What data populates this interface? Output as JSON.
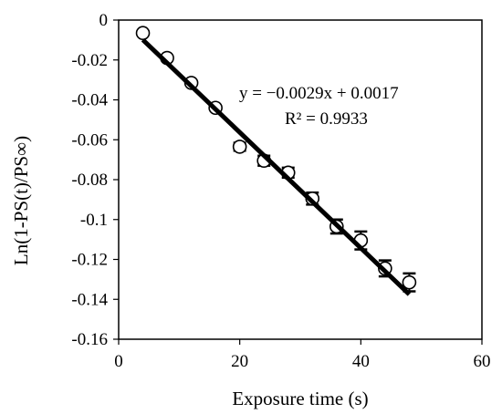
{
  "chart_data": {
    "type": "scatter",
    "xlabel": "Exposure time (s)",
    "ylabel": "Ln(1-PS(t)/PS∞)",
    "xlim": [
      0,
      60
    ],
    "ylim": [
      -0.16,
      0
    ],
    "x_ticks": [
      0,
      20,
      40,
      60
    ],
    "y_ticks": [
      0,
      -0.02,
      -0.04,
      -0.06,
      -0.08,
      -0.1,
      -0.12,
      -0.14,
      -0.16
    ],
    "x_tick_labels": [
      "0",
      "20",
      "40",
      "60"
    ],
    "y_tick_labels": [
      "0",
      "-0.02",
      "-0.04",
      "-0.06",
      "-0.08",
      "-0.1",
      "-0.12",
      "-0.14",
      "-0.16"
    ],
    "grid": false,
    "points": [
      {
        "x": 4,
        "y": -0.0065,
        "err": 0
      },
      {
        "x": 8,
        "y": -0.019,
        "err": 0
      },
      {
        "x": 12,
        "y": -0.0315,
        "err": 0
      },
      {
        "x": 16,
        "y": -0.044,
        "err": 0
      },
      {
        "x": 20,
        "y": -0.0635,
        "err": 0.002
      },
      {
        "x": 24,
        "y": -0.0705,
        "err": 0.0025
      },
      {
        "x": 28,
        "y": -0.0765,
        "err": 0.0025
      },
      {
        "x": 32,
        "y": -0.0895,
        "err": 0.003
      },
      {
        "x": 36,
        "y": -0.1035,
        "err": 0.0035
      },
      {
        "x": 40,
        "y": -0.1105,
        "err": 0.0045
      },
      {
        "x": 44,
        "y": -0.1245,
        "err": 0.004
      },
      {
        "x": 48,
        "y": -0.1315,
        "err": 0.0045
      }
    ],
    "trendline": {
      "slope": -0.0029,
      "intercept": 0.0017,
      "x_range": [
        4,
        48
      ],
      "equation": "y = −0.0029x + 0.0017",
      "r_squared": "R² = 0.9933"
    }
  }
}
